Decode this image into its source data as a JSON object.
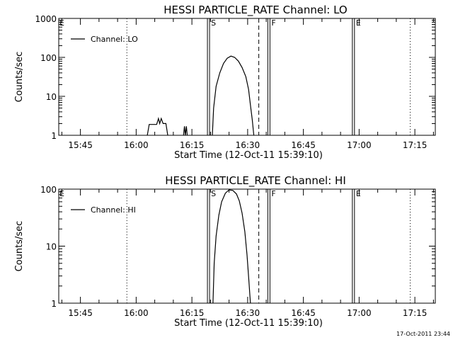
{
  "chart_data": [
    {
      "type": "line",
      "title": "HESSI PARTICLE_RATE Channel: LO",
      "xlabel": "Start Time (12-Oct-11 15:39:10)",
      "ylabel": "Counts/sec",
      "yscale": "log",
      "ylim": [
        1,
        1000
      ],
      "xlim": [
        "15:39:10",
        "17:20:30"
      ],
      "x_ticks": [
        "15:45",
        "16:00",
        "16:15",
        "16:30",
        "16:45",
        "17:00",
        "17:15"
      ],
      "y_ticks": [
        "1",
        "10",
        "100",
        "1000"
      ],
      "legend": {
        "placement": "top-left",
        "entries": [
          "Channel: LO"
        ]
      },
      "markers": [
        {
          "time": "16:19:45",
          "style": "solid",
          "label": "S"
        },
        {
          "time": "16:36:00",
          "style": "solid",
          "label": "F"
        },
        {
          "time": "16:58:45",
          "style": "solid",
          "label": "E"
        },
        {
          "time": "15:57:30",
          "style": "dotted",
          "label": ""
        },
        {
          "time": "16:33:00",
          "style": "dashed",
          "label": ""
        },
        {
          "time": "17:13:45",
          "style": "dotted",
          "label": ""
        }
      ],
      "top_markers": [
        {
          "time": "15:39:10",
          "label": "E"
        }
      ],
      "series": [
        {
          "name": "Channel: LO",
          "segments": [
            [
              [
                "16:03:00",
                1
              ],
              [
                "16:03:30",
                1.9
              ],
              [
                "16:05:30",
                1.9
              ],
              [
                "16:06:00",
                2.7
              ],
              [
                "16:06:20",
                2.0
              ],
              [
                "16:06:45",
                2.7
              ],
              [
                "16:07:15",
                2.0
              ],
              [
                "16:08:00",
                2.0
              ],
              [
                "16:08:30",
                1
              ]
            ],
            [
              [
                "16:12:45",
                1
              ],
              [
                "16:13:00",
                1.7
              ],
              [
                "16:13:15",
                1
              ],
              [
                "16:13:30",
                1.7
              ],
              [
                "16:13:45",
                1
              ]
            ],
            [
              [
                "16:20:30",
                1
              ],
              [
                "16:20:50",
                5
              ],
              [
                "16:21:30",
                18
              ],
              [
                "16:22:30",
                40
              ],
              [
                "16:23:30",
                70
              ],
              [
                "16:24:30",
                95
              ],
              [
                "16:25:30",
                108
              ],
              [
                "16:26:30",
                100
              ],
              [
                "16:27:30",
                80
              ],
              [
                "16:28:30",
                55
              ],
              [
                "16:29:30",
                32
              ],
              [
                "16:30:15",
                15
              ],
              [
                "16:30:45",
                6
              ],
              [
                "16:31:15",
                2.5
              ],
              [
                "16:31:40",
                1
              ]
            ]
          ]
        }
      ]
    },
    {
      "type": "line",
      "title": "HESSI PARTICLE_RATE Channel: HI",
      "xlabel": "Start Time (12-Oct-11 15:39:10)",
      "ylabel": "Counts/sec",
      "yscale": "log",
      "ylim": [
        1,
        100
      ],
      "xlim": [
        "15:39:10",
        "17:20:30"
      ],
      "x_ticks": [
        "15:45",
        "16:00",
        "16:15",
        "16:30",
        "16:45",
        "17:00",
        "17:15"
      ],
      "y_ticks": [
        "1",
        "10",
        "100"
      ],
      "legend": {
        "placement": "top-left",
        "entries": [
          "Channel: HI"
        ]
      },
      "markers": [
        {
          "time": "16:19:45",
          "style": "solid",
          "label": "S"
        },
        {
          "time": "16:36:00",
          "style": "solid",
          "label": "F"
        },
        {
          "time": "16:58:45",
          "style": "solid",
          "label": "E"
        },
        {
          "time": "15:57:30",
          "style": "dotted",
          "label": ""
        },
        {
          "time": "16:33:00",
          "style": "dashed",
          "label": ""
        },
        {
          "time": "17:13:45",
          "style": "dotted",
          "label": ""
        }
      ],
      "top_markers": [
        {
          "time": "15:39:10",
          "label": "E"
        }
      ],
      "series": [
        {
          "name": "Channel: HI",
          "segments": [
            [
              [
                "16:20:40",
                1
              ],
              [
                "16:21:00",
                5
              ],
              [
                "16:21:30",
                15
              ],
              [
                "16:22:15",
                35
              ],
              [
                "16:23:00",
                60
              ],
              [
                "16:24:00",
                85
              ],
              [
                "16:25:00",
                97
              ],
              [
                "16:26:00",
                95
              ],
              [
                "16:27:00",
                82
              ],
              [
                "16:27:45",
                62
              ],
              [
                "16:28:30",
                38
              ],
              [
                "16:29:15",
                18
              ],
              [
                "16:29:50",
                7
              ],
              [
                "16:30:20",
                2.5
              ],
              [
                "16:30:45",
                1
              ]
            ]
          ]
        }
      ]
    }
  ],
  "timestamp": "17-Oct-2011 23:44"
}
